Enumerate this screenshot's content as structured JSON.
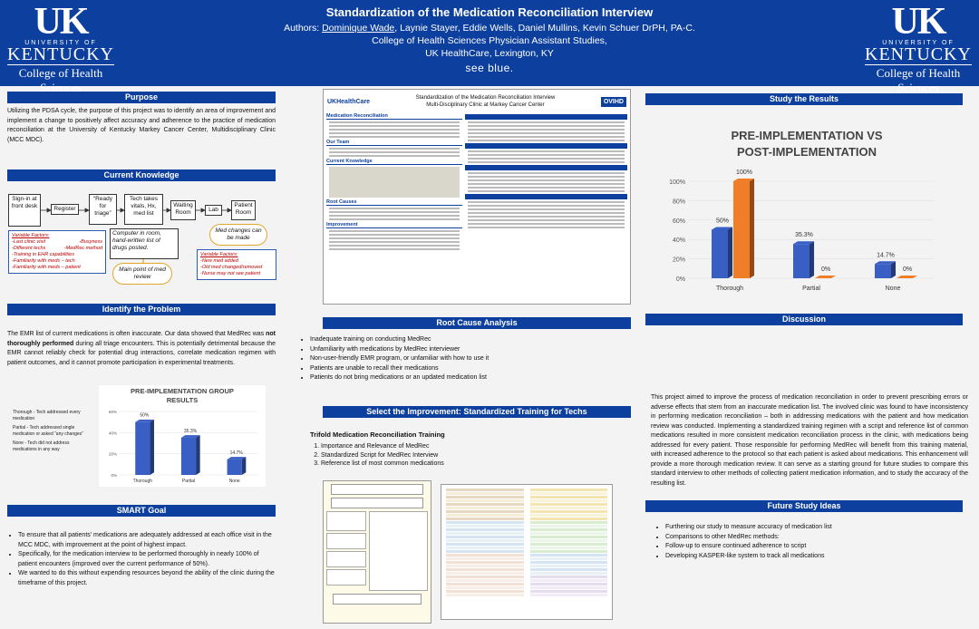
{
  "header": {
    "title": "Standardization of the Medication Reconciliation Interview",
    "authors_label": "Authors:",
    "lead_author": "Dominique Wade",
    "other_authors": ", Laynie Stayer, Eddie Wells, Daniel Mullins, Kevin Schuer DrPH, PA-C.",
    "college": "College of Health Sciences Physician Assistant Studies,",
    "location": "UK HealthCare, Lexington, KY",
    "tagline": "see blue.",
    "logo": {
      "mark": "UK",
      "university": "UNIVERSITY OF",
      "kentucky": "KENTUCKY",
      "college": "College of Health Sciences"
    }
  },
  "purpose": {
    "heading": "Purpose",
    "text": "Utilizing the PDSA cycle, the purpose of this project was to identify an area of improvement and implement a change to positively affect accuracy and adherence to the practice of medication reconciliation at the University of Kentucky Markey Cancer Center, Multidisciplinary Clinic (MCC MDC)."
  },
  "current_knowledge": {
    "heading": "Current Knowledge",
    "flow": [
      "Sign-in at front desk",
      "Register",
      "“Ready for triage”",
      "Tech takes vitals, Hx, med list",
      "Waiting Room",
      "Lab",
      "Patient Room"
    ],
    "variable_left_title": "Variable Factors:",
    "variable_left": [
      "-Last clinic visit",
      "-Busyness",
      "-Different techs",
      "-MedRec method",
      "-Training in EHR capabilities",
      "-Familiarity with meds – tech",
      "-Familiarity with meds – patient"
    ],
    "computer_note": "Computer in room, hand-written list of drugs posted.",
    "main_point": "Main point of med review",
    "med_changes": "Med changes can be made",
    "variable_right_title": "Variable Factors:",
    "variable_right": [
      "-New med added",
      "-Old med changed/removed",
      "-Nurse may not see patient"
    ]
  },
  "identify": {
    "heading": "Identify the Problem",
    "text_a": "The EMR list of current medications is often inaccurate. Our data showed that MedRec was ",
    "text_bold": "not thoroughly performed",
    "text_b": " during all triage encounters. This is potentially detrimental because the EMR cannot reliably check for potential drug interactions, correlate medication regimen with patient outcomes, and it cannot promote participation in experimental treatments.",
    "legend": [
      "Thorough - Tech addressed every medication",
      "Partial - Tech addressed single medication or asked “any changes”",
      "None - Tech did not address medications in any way"
    ]
  },
  "smart": {
    "heading": "SMART Goal",
    "bullets": [
      "To ensure that all patients’ medications are adequately addressed at each office visit in the MCC MDC, with improvement at the point of highest impact.",
      "Specifically, for the medication interview to be performed thoroughly in nearly 100% of patient encounters (improved over the current performance of 50%).",
      "We wanted to do this without expending resources beyond the ability of the clinic during the timeframe of this project."
    ]
  },
  "mini_poster": {
    "org": "UKHealthCare",
    "title_line1": "Standardization of the Medication Reconciliation Interview",
    "title_line2": "Multi-Disciplinary Clinic at Markey Cancer Center",
    "badge": "OVIHD",
    "sections": [
      "Medication Reconciliation",
      "Our Team",
      "Current Knowledge",
      "Root Causes",
      "Improvement"
    ]
  },
  "root_cause": {
    "heading": "Root Cause Analysis",
    "bullets": [
      "Inadequate training on conducting MedRec",
      "Unfamiliarity with medications by MedRec interviewer",
      "Non-user-friendly EMR program, or unfamiliar with how to use it",
      "Patients are unable to recall their medications",
      "Patients do not bring medications or an updated medication list"
    ]
  },
  "improvement": {
    "heading": "Select the Improvement: Standardized Training for Techs",
    "subheading": "Trifold Medication Reconciliation Training",
    "items": [
      "Importance and Relevance of MedRec",
      "Standardized Script for MedRec Interview",
      "Reference list of most common medications"
    ]
  },
  "study_results": {
    "heading": "Study the Results"
  },
  "discussion": {
    "heading": "Discussion",
    "text": "This project aimed to improve the process of medication reconciliation in order to prevent prescribing errors or adverse effects that stem from an inaccurate medication list. The involved clinic was found to have inconsistency in performing medication reconciliation – both in addressing medications with the patient and how medication review was conducted. Implementing a standardized training regimen with a script and reference list of common medications resulted in more consistent medication reconciliation process in the clinic, with medications being addressed for every patient. Those responsible for performing MedRec will benefit from this training material, with increased adherence to the protocol so that each patient is asked about medications. This enhancement will provide a more thorough medication review. It can serve as a starting ground for future studies to compare this standard interview to other methods of collecting patient medication information, and to study the accuracy of the resulting list."
  },
  "future": {
    "heading": "Future Study Ideas",
    "bullets": [
      "Furthering our study to measure accuracy of medication list",
      "Comparisons to other MedRec methods:",
      "Follow-up to ensure continued adherence to script",
      "Developing KASPER-like system to track all medications"
    ]
  },
  "chart_data": [
    {
      "type": "bar",
      "title": "PRE-IMPLEMENTATION GROUP RESULTS",
      "categories": [
        "Thorough",
        "Partial",
        "None"
      ],
      "values": [
        50,
        35.3,
        14.7
      ],
      "value_labels": [
        "50%",
        "35.3%",
        "14.7%"
      ],
      "tick_labels": [
        "0%",
        "20%",
        "40%",
        "60%"
      ],
      "ylim": [
        0,
        60
      ],
      "color": "#3a5fc4"
    },
    {
      "type": "bar",
      "title": "PRE-IMPLEMENTATION VS POST-IMPLEMENTATION",
      "categories": [
        "Thorough",
        "Partial",
        "None"
      ],
      "series": [
        {
          "values": [
            50,
            35.3,
            14.7
          ],
          "labels": [
            "50%",
            "35.3%",
            "14.7%"
          ],
          "color": "#3a5fc4"
        },
        {
          "values": [
            100,
            0,
            0
          ],
          "labels": [
            "100%",
            "0%",
            "0%"
          ],
          "color": "#f07d28"
        }
      ],
      "tick_labels": [
        "0%",
        "20%",
        "40%",
        "60%",
        "80%",
        "100%"
      ],
      "ylim": [
        0,
        100
      ]
    }
  ]
}
